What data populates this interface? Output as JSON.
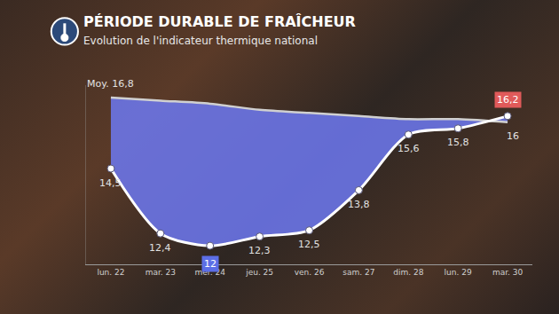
{
  "chart_data": {
    "type": "line",
    "title": "PÉRIODE DURABLE DE FRAÎCHEUR",
    "subtitle": "Evolution de l'indicateur thermique national",
    "categories": [
      "lun. 22",
      "mar. 23",
      "mer. 24",
      "jeu. 25",
      "ven. 26",
      "sam. 27",
      "dim. 28",
      "lun. 29",
      "mar. 30"
    ],
    "series": [
      {
        "color": "#d0d0d0",
        "marker": "none",
        "line_style": "solid",
        "values": [
          16.8,
          16.7,
          16.6,
          16.4,
          16.3,
          16.2,
          16.1,
          16.1,
          16.0
        ],
        "value_labels": [
          "Moy. 16,8",
          null,
          null,
          null,
          null,
          null,
          null,
          null,
          "16"
        ]
      },
      {
        "color": "#ffffff",
        "marker": "circle",
        "line_style": "solid",
        "values": [
          14.5,
          12.4,
          12,
          12.3,
          12.5,
          13.8,
          15.6,
          15.8,
          16.2
        ],
        "value_labels": [
          "14,5",
          "12,4",
          "12",
          "12,3",
          "12,5",
          "13,8",
          "15,6",
          "15,8",
          "16,2"
        ]
      }
    ],
    "ylim": [
      11.4,
      17.2
    ],
    "yticks": [],
    "grid": false,
    "data_labels": true,
    "tick_labels": "x"
  }
}
